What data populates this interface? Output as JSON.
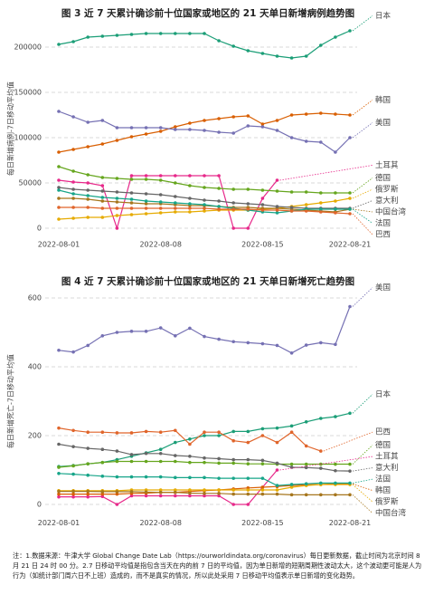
{
  "chart_data": [
    {
      "type": "line",
      "title": "图 3 近 7 天累计确诊前十位国家或地区的 21 天单日新增病例趋势图",
      "y_label": "每日新增病例-7日移动平均值",
      "x": [
        "2022-08-01",
        "2022-08-02",
        "2022-08-03",
        "2022-08-04",
        "2022-08-05",
        "2022-08-06",
        "2022-08-07",
        "2022-08-08",
        "2022-08-09",
        "2022-08-10",
        "2022-08-11",
        "2022-08-12",
        "2022-08-13",
        "2022-08-14",
        "2022-08-15",
        "2022-08-16",
        "2022-08-17",
        "2022-08-18",
        "2022-08-19",
        "2022-08-20",
        "2022-08-21"
      ],
      "xticks": [
        "2022-08-01",
        "2022-08-08",
        "2022-08-15",
        "2022-08-21"
      ],
      "ylim": [
        -5000,
        225000
      ],
      "yticks": [
        0,
        50000,
        100000,
        150000,
        200000
      ],
      "grid": true,
      "series": [
        {
          "name": "日本",
          "color": "#1b9e77",
          "values": [
            203000,
            206000,
            211000,
            212000,
            213000,
            214000,
            215000,
            215000,
            215000,
            215000,
            215000,
            207000,
            201000,
            196000,
            193000,
            190000,
            188000,
            190000,
            202000,
            211000,
            218000
          ]
        },
        {
          "name": "韩国",
          "color": "#d95f02",
          "values": [
            84000,
            87000,
            90000,
            93000,
            97000,
            101000,
            104000,
            107000,
            112000,
            116000,
            119000,
            121000,
            123000,
            124000,
            115000,
            119000,
            125000,
            126000,
            127000,
            126000,
            125000
          ]
        },
        {
          "name": "美国",
          "color": "#7570b3",
          "values": [
            129000,
            123000,
            117000,
            119000,
            111000,
            111000,
            111000,
            111000,
            109000,
            109000,
            108000,
            106000,
            105000,
            113000,
            112000,
            108000,
            100000,
            96000,
            95000,
            84000,
            100000
          ]
        },
        {
          "name": "土耳其",
          "color": "#e7298a",
          "values": [
            53000,
            51000,
            50000,
            47000,
            0,
            58000,
            58000,
            58000,
            58000,
            58000,
            58000,
            58000,
            0,
            0,
            33000,
            53000,
            null,
            null,
            null,
            null,
            null
          ]
        },
        {
          "name": "德国",
          "color": "#66a61e",
          "values": [
            68000,
            63000,
            59000,
            56000,
            55000,
            54000,
            54000,
            53000,
            50000,
            47000,
            45000,
            44000,
            43000,
            43000,
            42000,
            41000,
            40000,
            40000,
            39000,
            39000,
            39000
          ]
        },
        {
          "name": "俄罗斯",
          "color": "#e6ab02",
          "values": [
            10000,
            11000,
            12000,
            12000,
            14000,
            15000,
            16000,
            17000,
            18000,
            18000,
            19000,
            20000,
            20000,
            20000,
            21000,
            22000,
            24000,
            26000,
            28000,
            30000,
            33000
          ]
        },
        {
          "name": "中国台湾",
          "color": "#a6761d",
          "values": [
            33000,
            33000,
            32000,
            30000,
            29000,
            28000,
            27000,
            27000,
            26000,
            25000,
            25000,
            24000,
            23000,
            23000,
            22000,
            22000,
            21000,
            20000,
            19000,
            18000,
            21000
          ]
        },
        {
          "name": "意大利",
          "color": "#666666",
          "values": [
            45000,
            43000,
            42000,
            41000,
            40000,
            39000,
            38000,
            37000,
            35000,
            33000,
            31000,
            30000,
            28000,
            27000,
            26000,
            24000,
            23000,
            22000,
            22000,
            22000,
            22000
          ]
        },
        {
          "name": "法国",
          "color": "#17a589",
          "values": [
            42000,
            38000,
            36000,
            34000,
            33000,
            32000,
            30000,
            29000,
            28000,
            27000,
            26000,
            24000,
            22000,
            20000,
            18000,
            17000,
            19000,
            21000,
            21000,
            21000,
            21000
          ]
        },
        {
          "name": "巴西",
          "color": "#e0652b",
          "values": [
            23000,
            23000,
            23000,
            22000,
            22000,
            22000,
            22000,
            22000,
            22000,
            22000,
            22000,
            21000,
            21000,
            21000,
            20000,
            20000,
            19000,
            19000,
            18000,
            17000,
            16000
          ]
        }
      ]
    },
    {
      "type": "line",
      "title": "图 4 近 7 天累计确诊前十位国家或地区的 21 天单日新增死亡趋势图",
      "y_label": "每日新增死亡-7日移动平均值",
      "x": [
        "2022-08-01",
        "2022-08-02",
        "2022-08-03",
        "2022-08-04",
        "2022-08-05",
        "2022-08-06",
        "2022-08-07",
        "2022-08-08",
        "2022-08-09",
        "2022-08-10",
        "2022-08-11",
        "2022-08-12",
        "2022-08-13",
        "2022-08-14",
        "2022-08-15",
        "2022-08-16",
        "2022-08-17",
        "2022-08-18",
        "2022-08-19",
        "2022-08-20",
        "2022-08-21"
      ],
      "xticks": [
        "2022-08-01",
        "2022-08-08",
        "2022-08-15",
        "2022-08-21"
      ],
      "ylim": [
        -20,
        620
      ],
      "yticks": [
        0,
        200,
        400,
        600
      ],
      "grid": true,
      "series": [
        {
          "name": "美国",
          "color": "#7570b3",
          "values": [
            448,
            443,
            462,
            490,
            500,
            503,
            503,
            513,
            490,
            512,
            488,
            480,
            473,
            470,
            467,
            462,
            440,
            463,
            470,
            465,
            575
          ]
        },
        {
          "name": "日本",
          "color": "#1b9e77",
          "values": [
            110,
            113,
            118,
            122,
            130,
            140,
            150,
            160,
            180,
            190,
            200,
            200,
            212,
            212,
            220,
            222,
            228,
            240,
            250,
            255,
            265
          ]
        },
        {
          "name": "巴西",
          "color": "#e0652b",
          "values": [
            222,
            215,
            210,
            210,
            208,
            208,
            212,
            210,
            215,
            175,
            210,
            210,
            185,
            180,
            200,
            180,
            210,
            170,
            155,
            null,
            null
          ]
        },
        {
          "name": "土耳其",
          "color": "#e7298a",
          "values": [
            22,
            22,
            22,
            23,
            0,
            25,
            25,
            25,
            25,
            25,
            25,
            25,
            0,
            0,
            50,
            100,
            null,
            null,
            null,
            null,
            null
          ]
        },
        {
          "name": "德国",
          "color": "#66a61e",
          "values": [
            108,
            112,
            118,
            122,
            125,
            125,
            125,
            125,
            125,
            122,
            122,
            120,
            120,
            118,
            118,
            117,
            117,
            117,
            117,
            117,
            117
          ]
        },
        {
          "name": "意大利",
          "color": "#666666",
          "values": [
            175,
            168,
            163,
            160,
            155,
            145,
            148,
            148,
            142,
            140,
            135,
            133,
            130,
            130,
            128,
            120,
            108,
            107,
            105,
            98,
            97
          ]
        },
        {
          "name": "韩国",
          "color": "#d95f02",
          "values": [
            30,
            30,
            30,
            30,
            30,
            32,
            33,
            35,
            35,
            38,
            40,
            42,
            45,
            48,
            50,
            52,
            55,
            57,
            58,
            60,
            60
          ]
        },
        {
          "name": "俄罗斯",
          "color": "#e6ab02",
          "values": [
            40,
            40,
            40,
            40,
            40,
            42,
            42,
            42,
            42,
            42,
            42,
            42,
            42,
            42,
            42,
            42,
            50,
            55,
            58,
            58,
            58
          ]
        },
        {
          "name": "法国",
          "color": "#17a589",
          "values": [
            90,
            88,
            85,
            82,
            80,
            80,
            80,
            80,
            78,
            78,
            78,
            76,
            76,
            76,
            76,
            55,
            58,
            60,
            62,
            62,
            62
          ]
        },
        {
          "name": "中国台湾",
          "color": "#a6761d",
          "values": [
            38,
            38,
            38,
            37,
            37,
            37,
            36,
            35,
            35,
            33,
            32,
            32,
            30,
            30,
            30,
            30,
            28,
            28,
            28,
            28,
            28
          ]
        }
      ]
    }
  ],
  "note": "注：1.数据来源：牛津大学 Global Change Date Lab（https://ourworldindata.org/coronavirus）每日更新数据，截止时间为北京时间 8 月 21 日 24 时 00 分。2.7 日移动平均值是指包含当天在内的前 7 日的平均值，因为单日新增的短期周期性波动太大，这个波动更可能是人为行为（如统计部门周六日不上班）造成的，而不是真实的情况，所以此处采用 7 日移动平均值表示单日新增的变化趋势。"
}
